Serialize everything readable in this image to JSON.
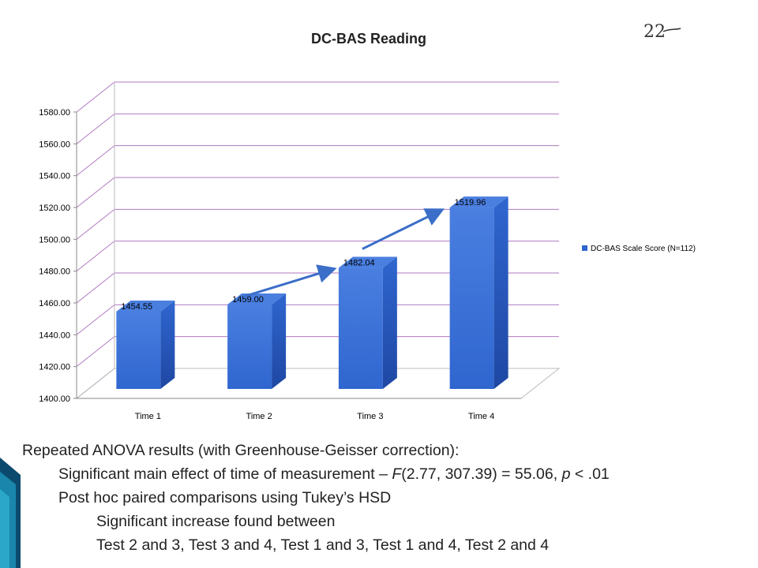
{
  "handwritten_note": "22",
  "chart_data": {
    "type": "bar",
    "title": "DC-BAS Reading",
    "categories": [
      "Time 1",
      "Time 2",
      "Time 3",
      "Time 4"
    ],
    "series": [
      {
        "name": "DC-BAS Scale Score (N=112)",
        "values": [
          1454.55,
          1459.0,
          1482.04,
          1519.96
        ],
        "color": "#2f66cf"
      }
    ],
    "data_labels": [
      "1454.55",
      "1459.00",
      "1482.04",
      "1519.96"
    ],
    "y_ticks": [
      "1400.00",
      "1420.00",
      "1440.00",
      "1460.00",
      "1480.00",
      "1500.00",
      "1520.00",
      "1540.00",
      "1560.00",
      "1580.00"
    ],
    "ylim": [
      1400,
      1580
    ],
    "xlabel": "",
    "ylabel": "",
    "grid": true,
    "legend_position": "right",
    "annotations": [
      "arrow Time 2 to Time 3",
      "arrow Time 3 to Time 4"
    ]
  },
  "results": {
    "heading": "Repeated ANOVA results (with Greenhouse-Geisser correction):",
    "effect_prefix": "Significant main effect of time of measurement – ",
    "effect_F": "F",
    "effect_stats": "(2.77, 307.39) = 55.06, ",
    "effect_p": "p",
    "effect_suffix": " < .01",
    "posthoc": "Post hoc paired comparisons using Tukey’s HSD",
    "increase": "Significant increase found between",
    "pairs": "Test 2 and 3, Test 3 and 4, Test 1 and 3, Test 1 and 4, Test 2 and 4"
  },
  "colors": {
    "bar_front": "#2f66cf",
    "bar_side": "#1f47a3",
    "bar_top": "#4a7fe0",
    "grid": "#b07ac2",
    "arrow": "#3b6ec8",
    "corner_dark": "#0b4a6e",
    "corner_light": "#2aa7c9"
  }
}
